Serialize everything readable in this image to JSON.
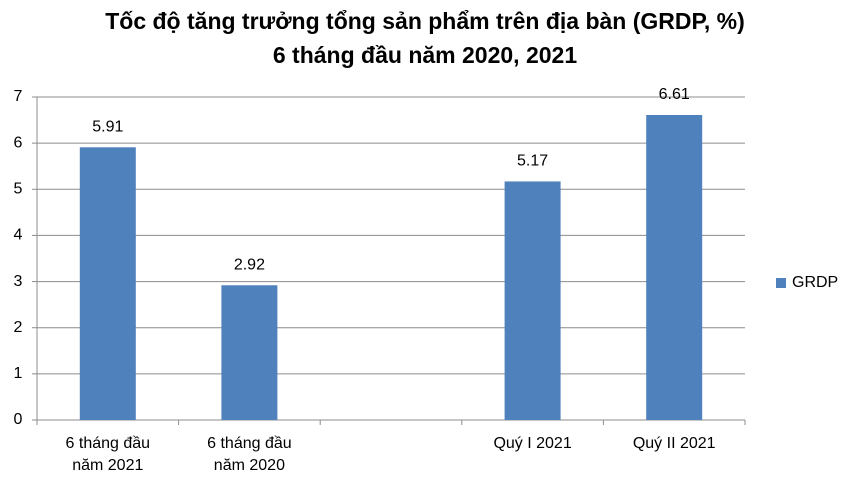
{
  "chart_data": {
    "type": "bar",
    "title": "Tốc độ tăng trưởng tổng sản phẩm trên địa bàn (GRDP, %)",
    "subtitle": "6 tháng đầu năm 2020, 2021",
    "categories": [
      "6 tháng đầu năm 2021",
      "6 tháng đầu năm 2020",
      null,
      "Quý I 2021",
      "Quý II 2021"
    ],
    "series": [
      {
        "name": "GRDP",
        "color": "#4f81bd",
        "values": [
          5.91,
          2.92,
          null,
          5.17,
          6.61
        ]
      }
    ],
    "ylim": [
      0,
      7
    ],
    "yticks": [
      0,
      1,
      2,
      3,
      4,
      5,
      6,
      7
    ],
    "grid": true,
    "legend": "right"
  }
}
